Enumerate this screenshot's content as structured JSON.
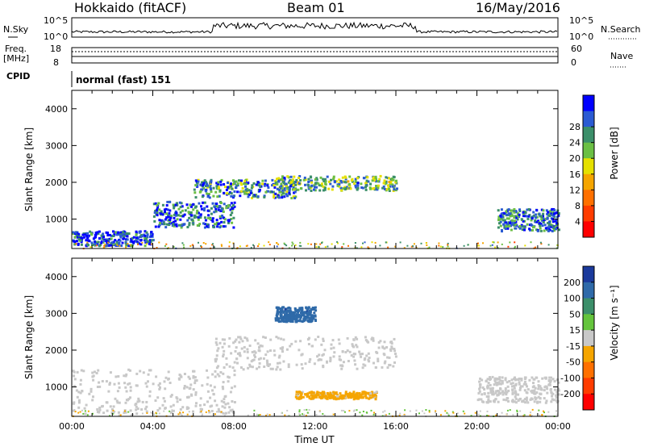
{
  "header": {
    "station": "Hokkaido (fitACF)",
    "beam": "Beam 01",
    "date": "16/May/2016"
  },
  "top_panels": {
    "nsky_label": "N.Sky",
    "nsearch_label": "N.Search",
    "nsky_ticks": [
      "10^5",
      "10^0"
    ],
    "nsearch_ticks": [
      "10^5",
      "10^0"
    ],
    "freq_label_1": "Freq.",
    "freq_label_2": "[MHz]",
    "freq_ticks": [
      "18",
      "8"
    ],
    "nave_label": "Nave",
    "nave_ticks": [
      "60",
      "0"
    ],
    "cpid_label": "CPID",
    "cpid_value": "normal (fast) 151"
  },
  "chart_data": [
    {
      "type": "heatmap",
      "panel": "power",
      "ylabel": "Slant Range [km]",
      "y_ticks": [
        "1000",
        "2000",
        "3000",
        "4000"
      ],
      "ylim": [
        200,
        4500
      ],
      "xlim": [
        0,
        24
      ],
      "colorbar_label": "Power [dB]",
      "colorbar_ticks": [
        "4",
        "8",
        "12",
        "16",
        "20",
        "24",
        "28"
      ],
      "colorbar_colors": [
        "#0000ff",
        "#2b5bd3",
        "#3c8f6a",
        "#6bbf44",
        "#e5e000",
        "#f5a500",
        "#ff7000",
        "#ff3c00",
        "#ff0000"
      ],
      "features": [
        {
          "hours": [
            0,
            4
          ],
          "range_km": [
            300,
            700
          ],
          "level_db": 26
        },
        {
          "hours": [
            4,
            8
          ],
          "range_km": [
            800,
            1500
          ],
          "level_db": 24
        },
        {
          "hours": [
            6,
            11
          ],
          "range_km": [
            1600,
            2100
          ],
          "level_db": 22
        },
        {
          "hours": [
            10,
            16
          ],
          "range_km": [
            1800,
            2200
          ],
          "level_db": 20
        },
        {
          "hours": [
            21,
            24
          ],
          "range_km": [
            700,
            1300
          ],
          "level_db": 24
        }
      ]
    },
    {
      "type": "heatmap",
      "panel": "velocity",
      "ylabel": "Slant Range [km]",
      "y_ticks": [
        "1000",
        "2000",
        "3000",
        "4000"
      ],
      "ylim": [
        200,
        4500
      ],
      "xlim": [
        0,
        24
      ],
      "x_ticks": [
        "00:00",
        "04:00",
        "08:00",
        "12:00",
        "16:00",
        "20:00",
        "00:00"
      ],
      "xlabel": "Time UT",
      "colorbar_label": "Velocity [m s⁻¹]",
      "colorbar_ticks": [
        "200",
        "100",
        "50",
        "15",
        "-15",
        "-50",
        "-100",
        "-200"
      ],
      "colorbar_colors": [
        "#1b3a9c",
        "#2f6aa9",
        "#3c8f6a",
        "#64c43c",
        "#c8c8c8",
        "#f5a500",
        "#ff7000",
        "#ff3c00",
        "#ff0000"
      ],
      "features": [
        {
          "hours": [
            0,
            8
          ],
          "range_km": [
            300,
            1500
          ],
          "velocity": 0
        },
        {
          "hours": [
            7,
            16
          ],
          "range_km": [
            1500,
            2400
          ],
          "velocity": 0
        },
        {
          "hours": [
            10,
            12
          ],
          "range_km": [
            2800,
            3200
          ],
          "velocity": 180
        },
        {
          "hours": [
            11,
            15
          ],
          "range_km": [
            700,
            900
          ],
          "velocity": -40
        },
        {
          "hours": [
            20,
            24
          ],
          "range_km": [
            600,
            1300
          ],
          "velocity": 0
        }
      ]
    }
  ]
}
